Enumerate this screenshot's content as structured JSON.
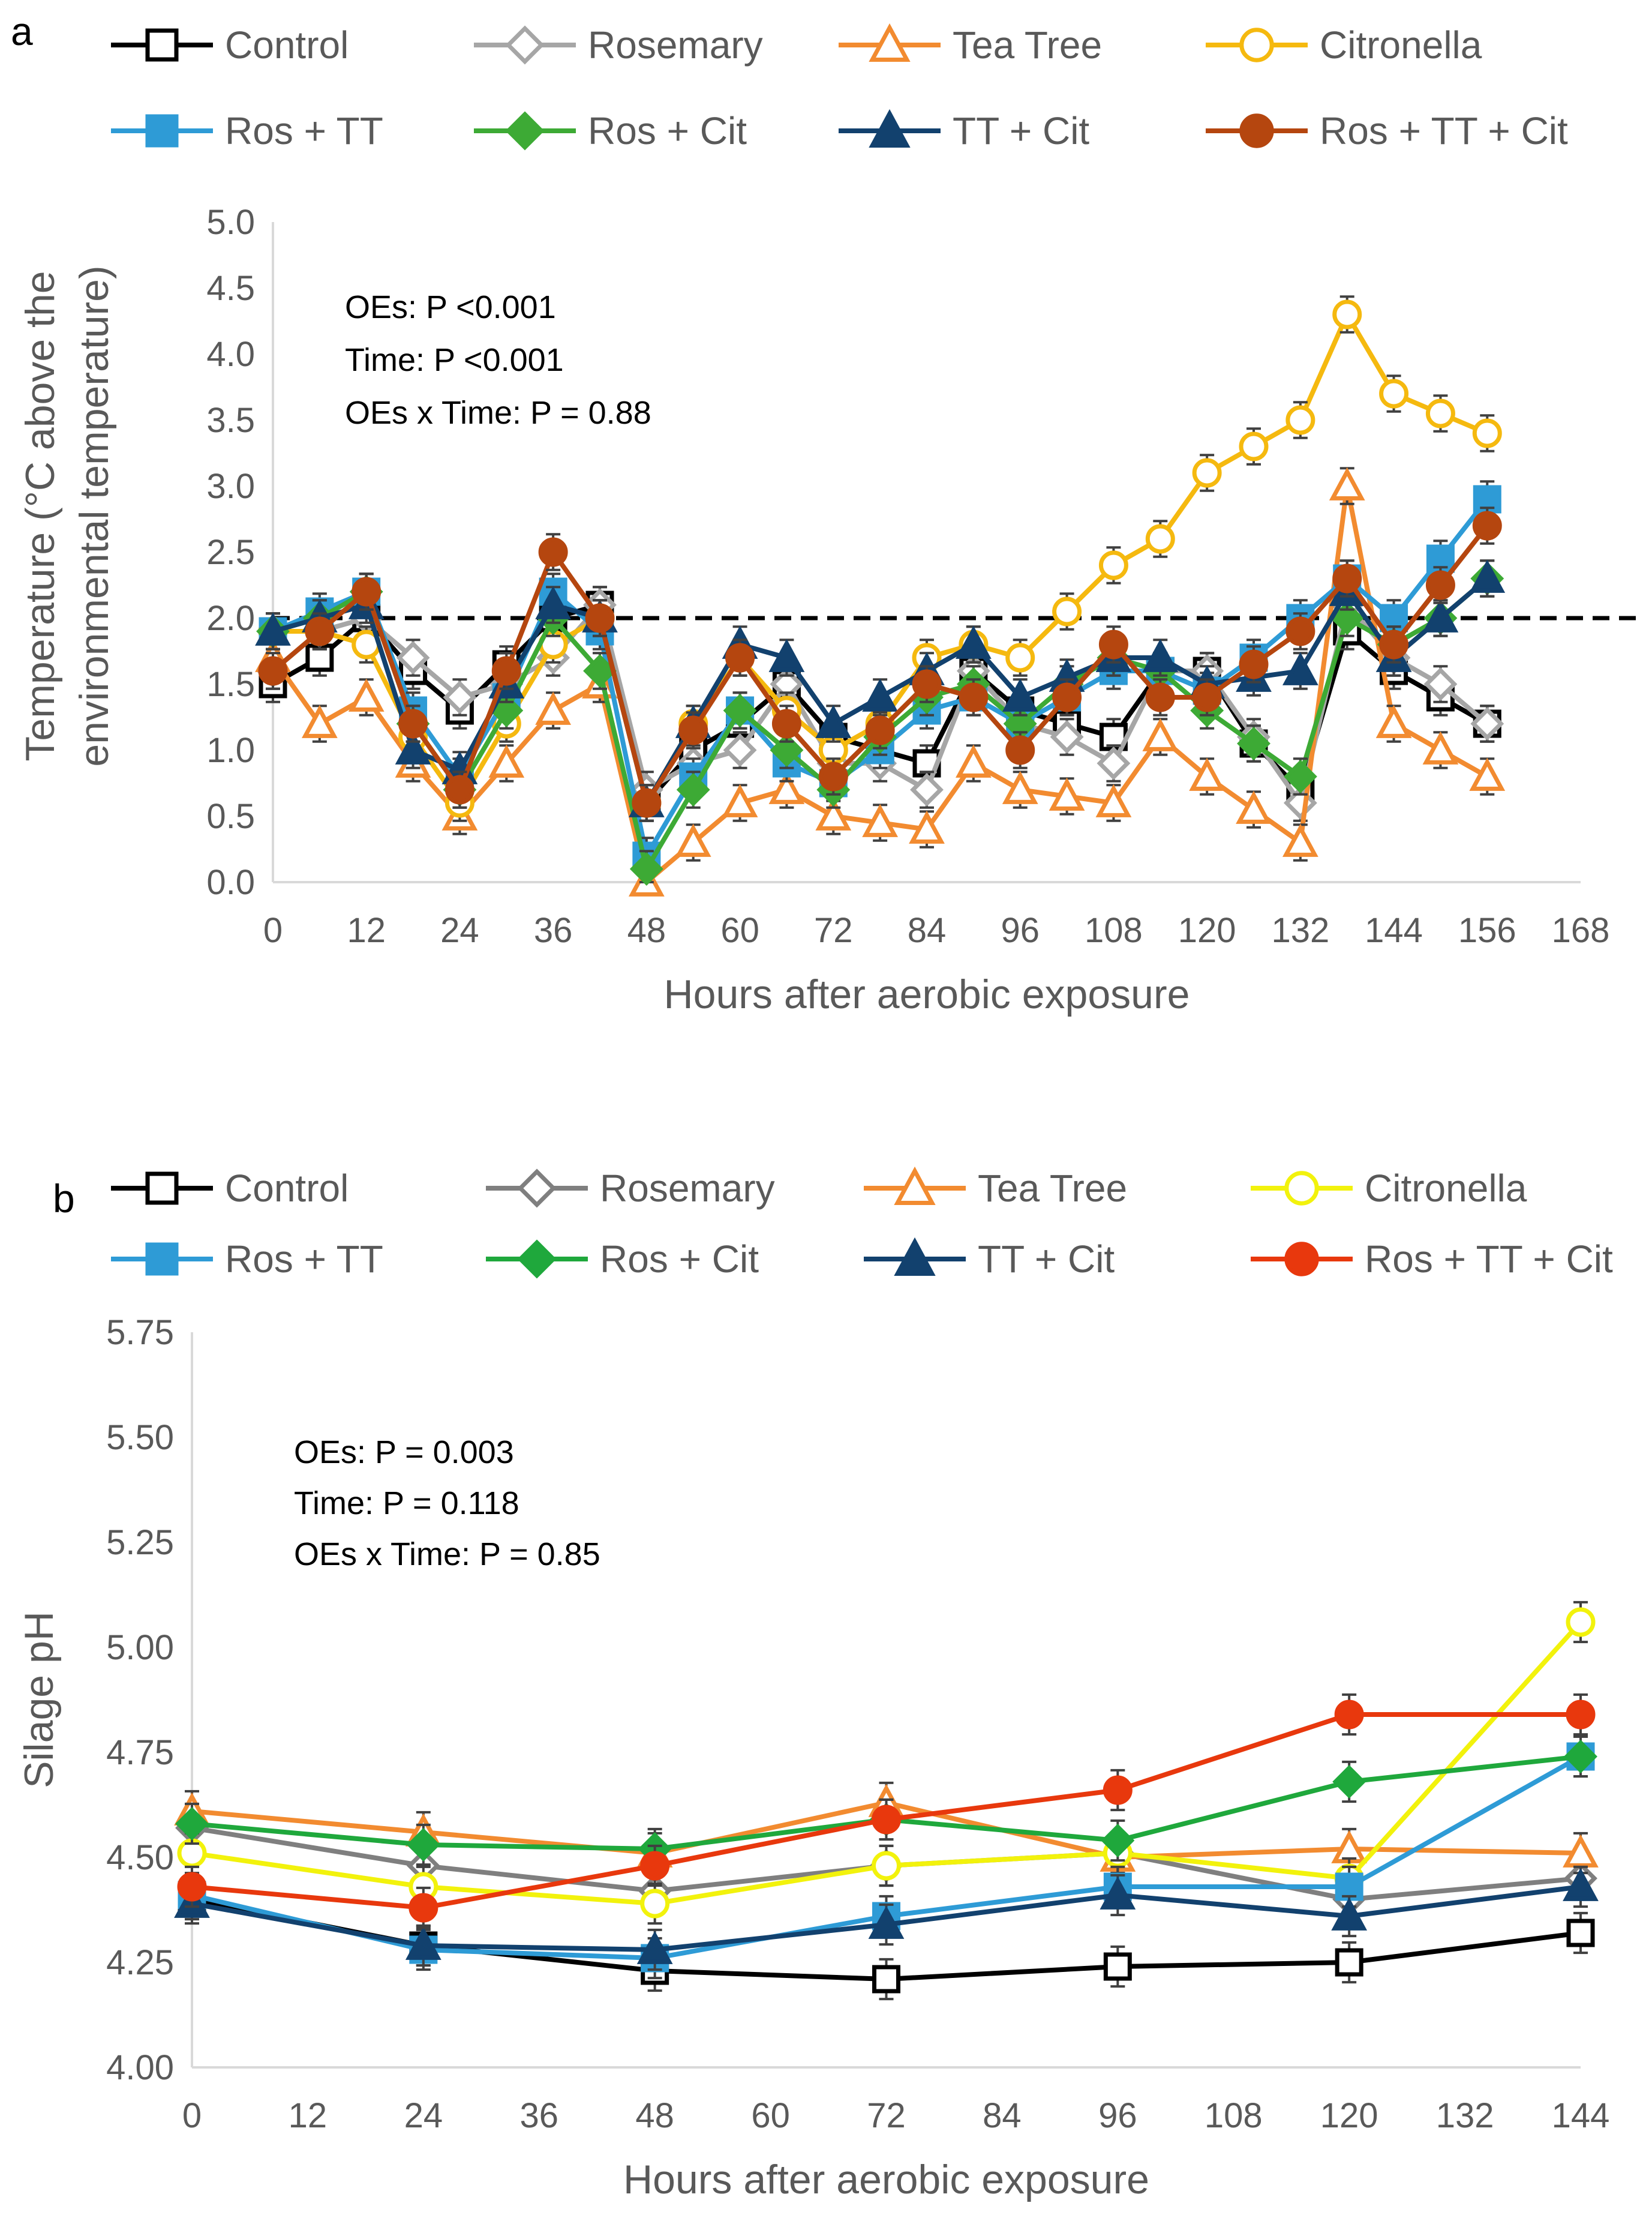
{
  "chart_data": [
    {
      "type": "line",
      "panel_label": "a",
      "xlabel": "Hours after aerobic exposure",
      "ylabel_line1": "Temperature (°C above the",
      "ylabel_line2": "environmental temperature)",
      "xlim": [
        0,
        168
      ],
      "ylim": [
        0,
        5
      ],
      "xticks": [
        "0",
        "12",
        "24",
        "36",
        "48",
        "60",
        "72",
        "84",
        "96",
        "108",
        "120",
        "132",
        "144",
        "156",
        "168"
      ],
      "yticks": [
        "0.0",
        "0.5",
        "1.0",
        "1.5",
        "2.0",
        "2.5",
        "3.0",
        "3.5",
        "4.0",
        "4.5",
        "5.0"
      ],
      "reference_line": 2.0,
      "annotations": [
        "OEs: P <0.001",
        "Time: P <0.001",
        "OEs x Time: P = 0.88"
      ],
      "x": [
        0,
        6,
        12,
        18,
        24,
        30,
        36,
        42,
        48,
        54,
        60,
        66,
        72,
        78,
        84,
        90,
        96,
        102,
        108,
        114,
        120,
        126,
        132,
        138,
        144,
        150,
        156
      ],
      "series": [
        {
          "name": "Control",
          "color": "#000000",
          "marker": "square-open",
          "values": [
            1.5,
            1.7,
            2.0,
            1.6,
            1.3,
            1.65,
            2.0,
            2.1,
            0.6,
            1.0,
            1.2,
            1.5,
            1.1,
            1.0,
            0.9,
            1.6,
            1.3,
            1.2,
            1.1,
            1.6,
            1.6,
            1.05,
            0.7,
            1.9,
            1.6,
            1.4,
            1.2
          ]
        },
        {
          "name": "Rosemary",
          "color": "#A6A6A6",
          "marker": "diamond-open",
          "values": [
            1.6,
            1.9,
            2.0,
            1.7,
            1.4,
            1.5,
            1.7,
            2.1,
            0.7,
            0.9,
            1.0,
            1.5,
            0.9,
            0.9,
            0.7,
            1.6,
            1.2,
            1.1,
            0.9,
            1.6,
            1.6,
            1.1,
            0.6,
            2.1,
            1.7,
            1.5,
            1.2
          ]
        },
        {
          "name": "Tea Tree",
          "color": "#F28B30",
          "marker": "triangle-open",
          "values": [
            1.7,
            1.2,
            1.4,
            0.9,
            0.5,
            0.9,
            1.3,
            1.5,
            0.0,
            0.3,
            0.6,
            0.7,
            0.5,
            0.45,
            0.4,
            0.9,
            0.7,
            0.65,
            0.6,
            1.1,
            0.8,
            0.55,
            0.3,
            3.0,
            1.2,
            1.0,
            0.8
          ]
        },
        {
          "name": "Citronella",
          "color": "#F5B90F",
          "marker": "circle-open",
          "values": [
            1.9,
            1.9,
            1.8,
            1.1,
            0.6,
            1.2,
            1.8,
            2.0,
            0.6,
            1.2,
            1.7,
            1.3,
            1.0,
            1.2,
            1.7,
            1.8,
            1.7,
            2.05,
            2.4,
            2.6,
            3.1,
            3.3,
            3.5,
            4.3,
            3.7,
            3.55,
            3.4
          ]
        },
        {
          "name": "Ros + TT",
          "color": "#2E9BD6",
          "marker": "square",
          "values": [
            1.9,
            2.05,
            2.2,
            1.3,
            0.8,
            1.4,
            2.2,
            1.9,
            0.2,
            0.8,
            1.3,
            0.9,
            0.75,
            1.0,
            1.3,
            1.4,
            1.2,
            1.4,
            1.6,
            1.6,
            1.45,
            1.7,
            2.0,
            2.3,
            2.0,
            2.45,
            2.9
          ]
        },
        {
          "name": "Ros + Cit",
          "color": "#3DAA35",
          "marker": "diamond",
          "values": [
            1.9,
            2.0,
            2.2,
            1.2,
            0.7,
            1.3,
            2.0,
            1.6,
            0.1,
            0.7,
            1.3,
            1.0,
            0.7,
            1.1,
            1.4,
            1.5,
            1.2,
            1.5,
            1.7,
            1.6,
            1.3,
            1.05,
            0.8,
            2.0,
            1.8,
            2.0,
            2.3
          ]
        },
        {
          "name": "TT + Cit",
          "color": "#12416E",
          "marker": "triangle",
          "values": [
            1.9,
            2.0,
            2.1,
            1.0,
            0.85,
            1.5,
            2.1,
            2.0,
            0.6,
            1.2,
            1.8,
            1.7,
            1.2,
            1.4,
            1.6,
            1.8,
            1.4,
            1.55,
            1.7,
            1.7,
            1.5,
            1.55,
            1.6,
            2.2,
            1.7,
            2.0,
            2.3
          ]
        },
        {
          "name": "Ros + TT + Cit",
          "color": "#B5460F",
          "marker": "circle",
          "values": [
            1.6,
            1.9,
            2.2,
            1.2,
            0.7,
            1.6,
            2.5,
            2.0,
            0.6,
            1.15,
            1.7,
            1.2,
            0.8,
            1.15,
            1.5,
            1.4,
            1.0,
            1.4,
            1.8,
            1.4,
            1.4,
            1.65,
            1.9,
            2.3,
            1.8,
            2.25,
            2.7
          ]
        }
      ]
    },
    {
      "type": "line",
      "panel_label": "b",
      "xlabel": "Hours after aerobic exposure",
      "ylabel": "Silage pH",
      "xlim": [
        0,
        144
      ],
      "ylim": [
        4,
        5.75
      ],
      "xticks": [
        "0",
        "12",
        "24",
        "36",
        "48",
        "60",
        "72",
        "84",
        "96",
        "108",
        "120",
        "132",
        "144"
      ],
      "yticks": [
        "4.00",
        "4.25",
        "4.50",
        "4.75",
        "5.00",
        "5.25",
        "5.50",
        "5.75"
      ],
      "annotations": [
        "OEs: P = 0.003",
        "Time: P = 0.118",
        "OEs x Time: P = 0.85"
      ],
      "x": [
        0,
        24,
        48,
        72,
        96,
        120,
        144
      ],
      "series": [
        {
          "name": "Control",
          "color": "#000000",
          "marker": "square-open",
          "values": [
            4.4,
            4.29,
            4.23,
            4.21,
            4.24,
            4.25,
            4.32
          ]
        },
        {
          "name": "Rosemary",
          "color": "#7F7F7F",
          "marker": "diamond-open",
          "values": [
            4.57,
            4.48,
            4.42,
            4.48,
            4.51,
            4.4,
            4.45
          ]
        },
        {
          "name": "Tea Tree",
          "color": "#F28B30",
          "marker": "triangle-open",
          "values": [
            4.61,
            4.56,
            4.51,
            4.63,
            4.5,
            4.52,
            4.51
          ]
        },
        {
          "name": "Citronella",
          "color": "#F2F20C",
          "marker": "circle-open",
          "values": [
            4.51,
            4.43,
            4.39,
            4.48,
            4.51,
            4.45,
            5.06
          ]
        },
        {
          "name": "Ros + TT",
          "color": "#2E9BD6",
          "marker": "square",
          "values": [
            4.41,
            4.28,
            4.26,
            4.36,
            4.43,
            4.43,
            4.74
          ]
        },
        {
          "name": "Ros + Cit",
          "color": "#1FA83C",
          "marker": "diamond",
          "values": [
            4.58,
            4.53,
            4.52,
            4.59,
            4.54,
            4.68,
            4.74
          ]
        },
        {
          "name": "TT + Cit",
          "color": "#12416E",
          "marker": "triangle",
          "values": [
            4.39,
            4.29,
            4.28,
            4.34,
            4.41,
            4.36,
            4.43
          ]
        },
        {
          "name": "Ros + TT + Cit",
          "color": "#E8380D",
          "marker": "circle",
          "values": [
            4.43,
            4.38,
            4.48,
            4.59,
            4.66,
            4.84,
            4.84
          ]
        }
      ]
    }
  ]
}
